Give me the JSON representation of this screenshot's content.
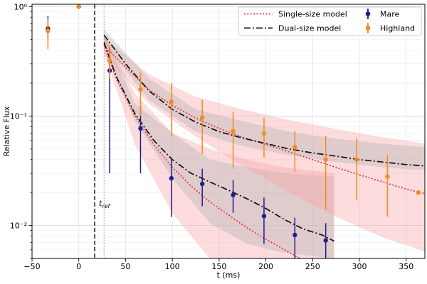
{
  "chart_data": {
    "type": "scatter",
    "title": "",
    "xlabel": "t (ms)",
    "ylabel": "Relative Flux",
    "xlim": [
      -50,
      370
    ],
    "ylim": [
      0.005,
      1.05
    ],
    "yscale": "log",
    "xticks": [
      -50,
      0,
      50,
      100,
      150,
      200,
      250,
      300,
      350
    ],
    "yticks": [
      {
        "value": 1,
        "label": "10⁰"
      },
      {
        "value": 0.1,
        "label": "10⁻¹"
      },
      {
        "value": 0.01,
        "label": "10⁻²"
      }
    ],
    "grid": true,
    "legend": {
      "placement": "top-right",
      "entries": [
        {
          "label": "Single-size model",
          "style": "dotted",
          "color": "#e8262b"
        },
        {
          "label": "Dual-size model",
          "style": "dashdot",
          "color": "#111111"
        },
        {
          "label": "Mare",
          "style": "errorbar",
          "color": "#1f1f8c"
        },
        {
          "label": "Highland",
          "style": "errorbar",
          "color": "#f58b1f"
        }
      ]
    },
    "annotations": {
      "t_ref_label_main": "t",
      "t_ref_label_sub": "ref",
      "t_ref_x": 17,
      "second_vline_x": 27
    },
    "series": [
      {
        "name": "Mare",
        "color": "#1f1f8c",
        "points": [
          {
            "x": -33,
            "y": 0.63,
            "lo": 0.5,
            "hi": 0.82
          },
          {
            "x": 0,
            "y": 1.0,
            "lo": 0.98,
            "hi": 1.02
          },
          {
            "x": 33,
            "y": 0.26,
            "lo": 0.03,
            "hi": 0.42
          },
          {
            "x": 66,
            "y": 0.077,
            "lo": 0.03,
            "hi": 0.125
          },
          {
            "x": 99,
            "y": 0.027,
            "lo": 0.012,
            "hi": 0.042
          },
          {
            "x": 132,
            "y": 0.024,
            "lo": 0.015,
            "hi": 0.033
          },
          {
            "x": 165,
            "y": 0.019,
            "lo": 0.013,
            "hi": 0.026
          },
          {
            "x": 198,
            "y": 0.0122,
            "lo": 0.0068,
            "hi": 0.018
          },
          {
            "x": 231,
            "y": 0.0082,
            "lo": 0.005,
            "hi": 0.0118
          },
          {
            "x": 264,
            "y": 0.0073,
            "lo": 0.005,
            "hi": 0.0105
          }
        ]
      },
      {
        "name": "Highland",
        "color": "#f58b1f",
        "points": [
          {
            "x": -33,
            "y": 0.6,
            "lo": 0.41,
            "hi": 0.78
          },
          {
            "x": 0,
            "y": 1.0,
            "lo": 0.98,
            "hi": 1.02
          },
          {
            "x": 33,
            "y": 0.32,
            "lo": 0.22,
            "hi": 0.44
          },
          {
            "x": 66,
            "y": 0.175,
            "lo": 0.1,
            "hi": 0.25
          },
          {
            "x": 99,
            "y": 0.135,
            "lo": 0.065,
            "hi": 0.2
          },
          {
            "x": 132,
            "y": 0.097,
            "lo": 0.045,
            "hi": 0.14
          },
          {
            "x": 165,
            "y": 0.073,
            "lo": 0.033,
            "hi": 0.109
          },
          {
            "x": 198,
            "y": 0.069,
            "lo": 0.042,
            "hi": 0.096
          },
          {
            "x": 231,
            "y": 0.052,
            "lo": 0.031,
            "hi": 0.073
          },
          {
            "x": 264,
            "y": 0.04,
            "lo": 0.014,
            "hi": 0.066
          },
          {
            "x": 297,
            "y": 0.04,
            "lo": 0.017,
            "hi": 0.063
          },
          {
            "x": 330,
            "y": 0.028,
            "lo": 0.012,
            "hi": 0.044
          },
          {
            "x": 363,
            "y": 0.02,
            "lo": 0.019,
            "hi": 0.021
          }
        ]
      }
    ],
    "models": [
      {
        "name": "Single-size model",
        "component": "Mare",
        "style": "dotted",
        "color": "#e8262b",
        "x": [
          27,
          40,
          60,
          80,
          100,
          120,
          140,
          160,
          180,
          200,
          220,
          240
        ],
        "y": [
          0.45,
          0.22,
          0.1,
          0.055,
          0.034,
          0.023,
          0.0165,
          0.0125,
          0.0095,
          0.0075,
          0.006,
          0.0048
        ],
        "band_x": [
          27,
          60,
          100,
          140,
          180,
          220,
          273
        ],
        "band_lo": [
          0.38,
          0.055,
          0.013,
          0.005,
          0.005,
          0.005,
          0.005
        ],
        "band_hi": [
          0.55,
          0.16,
          0.07,
          0.05,
          0.04,
          0.034,
          0.03
        ]
      },
      {
        "name": "Dual-size model",
        "component": "Mare",
        "style": "dashdot",
        "color": "#111111",
        "x": [
          27,
          40,
          60,
          80,
          100,
          120,
          140,
          160,
          180,
          200,
          220,
          240,
          260,
          273
        ],
        "y": [
          0.47,
          0.23,
          0.105,
          0.06,
          0.04,
          0.03,
          0.025,
          0.021,
          0.0175,
          0.0143,
          0.0113,
          0.0093,
          0.0082,
          0.0072
        ],
        "band_x": [
          27,
          60,
          100,
          140,
          180,
          220,
          273
        ],
        "band_lo": [
          0.42,
          0.09,
          0.027,
          0.0105,
          0.0068,
          0.0056,
          0.005
        ],
        "band_hi": [
          0.56,
          0.13,
          0.07,
          0.04,
          0.034,
          0.03,
          0.028
        ]
      },
      {
        "name": "Single-size model",
        "component": "Highland",
        "style": "dotted",
        "color": "#e8262b",
        "x": [
          27,
          50,
          75,
          100,
          125,
          150,
          175,
          200,
          225,
          250,
          275,
          300,
          325,
          350,
          370
        ],
        "y": [
          0.44,
          0.28,
          0.175,
          0.125,
          0.096,
          0.077,
          0.064,
          0.055,
          0.047,
          0.04,
          0.034,
          0.029,
          0.025,
          0.0215,
          0.0195
        ],
        "band_x": [
          27,
          75,
          125,
          175,
          225,
          275,
          325,
          370
        ],
        "band_lo": [
          0.36,
          0.13,
          0.065,
          0.035,
          0.02,
          0.012,
          0.0078,
          0.0058
        ],
        "band_hi": [
          0.52,
          0.24,
          0.15,
          0.115,
          0.092,
          0.076,
          0.064,
          0.056
        ]
      },
      {
        "name": "Dual-size model",
        "component": "Highland",
        "style": "dashdot",
        "color": "#111111",
        "x": [
          27,
          50,
          75,
          100,
          125,
          150,
          175,
          200,
          225,
          250,
          275,
          300,
          325,
          350,
          370
        ],
        "y": [
          0.55,
          0.3,
          0.17,
          0.115,
          0.088,
          0.072,
          0.063,
          0.056,
          0.05,
          0.046,
          0.043,
          0.04,
          0.038,
          0.036,
          0.035
        ],
        "band_x": [
          27,
          75,
          125,
          175,
          225,
          275,
          325,
          370
        ],
        "band_lo": [
          0.46,
          0.14,
          0.072,
          0.053,
          0.044,
          0.038,
          0.034,
          0.032
        ],
        "band_hi": [
          0.62,
          0.22,
          0.115,
          0.09,
          0.072,
          0.062,
          0.056,
          0.052
        ]
      }
    ]
  }
}
